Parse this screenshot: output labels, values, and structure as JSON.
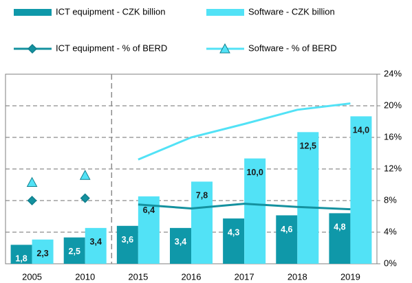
{
  "chart_data": {
    "type": "bar_line",
    "categories": [
      "2005",
      "2010",
      "2015",
      "2016",
      "2017",
      "2018",
      "2019"
    ],
    "series": [
      {
        "name": "ICT equipment - CZK billion",
        "type": "bar",
        "color": "#0f98a9",
        "label_color": "#ffffff",
        "values": [
          1.8,
          2.5,
          3.6,
          3.4,
          4.3,
          4.6,
          4.8
        ],
        "value_labels": [
          "1,8",
          "2,5",
          "3,6",
          "3,4",
          "4,3",
          "4,6",
          "4,8"
        ]
      },
      {
        "name": "Software - CZK billion",
        "type": "bar",
        "color": "#52e2f6",
        "label_color": "#1a1a1a",
        "values": [
          2.3,
          3.4,
          6.4,
          7.8,
          10.0,
          12.5,
          14.0
        ],
        "value_labels": [
          "2,3",
          "3,4",
          "6,4",
          "7,8",
          "10,0",
          "12,5",
          "14,0"
        ]
      },
      {
        "name": "ICT equipment  - % of BERD",
        "type": "line",
        "axis": "y2",
        "color": "#14919f",
        "marker": "diamond",
        "values": [
          8.0,
          8.3,
          7.5,
          7.0,
          7.6,
          7.2,
          6.9
        ]
      },
      {
        "name": "Software - % of BERD",
        "type": "line",
        "axis": "y2",
        "color": "#52e2f6",
        "marker": "triangle",
        "values": [
          10.3,
          11.2,
          13.2,
          16.0,
          17.7,
          19.5,
          20.3
        ]
      }
    ],
    "ylim": [
      0,
      18
    ],
    "y2lim": [
      0,
      24
    ],
    "y2ticks": [
      {
        "value": 0,
        "label": "0%"
      },
      {
        "value": 4,
        "label": "4%"
      },
      {
        "value": 8,
        "label": "8%"
      },
      {
        "value": 12,
        "label": "12%"
      },
      {
        "value": 16,
        "label": "16%"
      },
      {
        "value": 20,
        "label": "20%"
      },
      {
        "value": 24,
        "label": "24%"
      }
    ],
    "grid": true
  }
}
